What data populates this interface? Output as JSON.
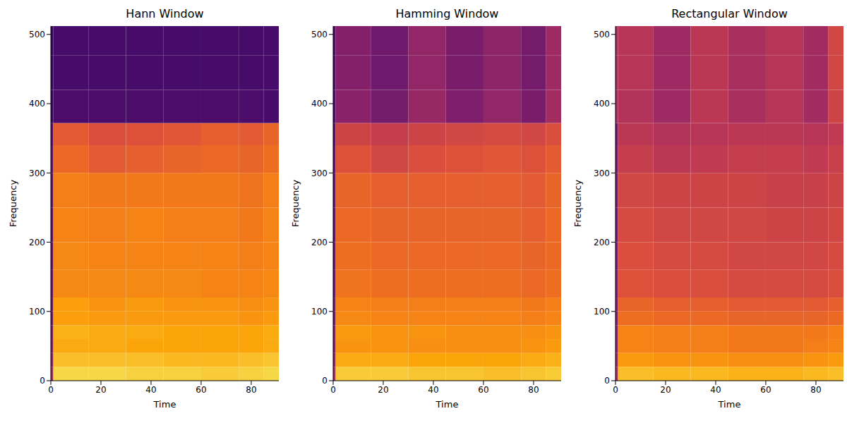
{
  "chart_data": [
    {
      "type": "heatmap",
      "title": "Hann Window",
      "x_label": "Time",
      "y_label": "Frequency",
      "xlim": [
        0,
        91
      ],
      "xticks": [
        0,
        20,
        40,
        60,
        80
      ],
      "ylim": [
        0,
        512
      ],
      "yticks": [
        0,
        100,
        200,
        300,
        400,
        500
      ],
      "clim": [
        -80,
        0
      ],
      "xbins": [
        0,
        1,
        15,
        30,
        45,
        60,
        75,
        85,
        91
      ],
      "ybins": [
        0,
        20,
        40,
        60,
        80,
        100,
        120,
        160,
        200,
        250,
        300,
        340,
        372,
        420,
        470,
        512
      ],
      "cells": [
        [
          -45,
          -8,
          -8,
          -9,
          -9,
          -10,
          -9,
          -8
        ],
        [
          -50,
          -12,
          -12,
          -12,
          -13,
          -13,
          -12,
          -11
        ],
        [
          -52,
          -15,
          -15,
          -16,
          -16,
          -16,
          -16,
          -15
        ],
        [
          -52,
          -14,
          -15,
          -15,
          -16,
          -16,
          -16,
          -15
        ],
        [
          -55,
          -17,
          -18,
          -18,
          -18,
          -18,
          -19,
          -18
        ],
        [
          -55,
          -17,
          -19,
          -18,
          -19,
          -19,
          -20,
          -19
        ],
        [
          -56,
          -21,
          -21,
          -21,
          -21,
          -22,
          -22,
          -21
        ],
        [
          -57,
          -21,
          -22,
          -22,
          -22,
          -22,
          -23,
          -22
        ],
        [
          -58,
          -22,
          -23,
          -22,
          -23,
          -23,
          -24,
          -22
        ],
        [
          -58,
          -23,
          -24,
          -24,
          -24,
          -24,
          -25,
          -23
        ],
        [
          -58,
          -27,
          -30,
          -29,
          -28,
          -27,
          -28,
          -26
        ],
        [
          -60,
          -30,
          -33,
          -32,
          -31,
          -29,
          -30,
          -28
        ],
        [
          -66,
          -62,
          -62,
          -62,
          -62,
          -62,
          -62,
          -63
        ],
        [
          -66,
          -63,
          -63,
          -63,
          -63,
          -63,
          -63,
          -63
        ],
        [
          -66,
          -63,
          -63,
          -63,
          -63,
          -63,
          -63,
          -63
        ]
      ]
    },
    {
      "type": "heatmap",
      "title": "Hamming Window",
      "x_label": "Time",
      "y_label": "Frequency",
      "xlim": [
        0,
        91
      ],
      "xticks": [
        0,
        20,
        40,
        60,
        80
      ],
      "ylim": [
        0,
        512
      ],
      "yticks": [
        0,
        100,
        200,
        300,
        400,
        500
      ],
      "clim": [
        -80,
        0
      ],
      "xbins": [
        0,
        1,
        15,
        30,
        45,
        60,
        75,
        85,
        91
      ],
      "ybins": [
        0,
        20,
        40,
        60,
        80,
        100,
        120,
        160,
        200,
        250,
        300,
        340,
        372,
        420,
        470,
        512
      ],
      "cells": [
        [
          -45,
          -10,
          -10,
          -11,
          -11,
          -12,
          -11,
          -10
        ],
        [
          -50,
          -15,
          -15,
          -16,
          -16,
          -16,
          -15,
          -14
        ],
        [
          -52,
          -19,
          -19,
          -20,
          -20,
          -20,
          -19,
          -18
        ],
        [
          -52,
          -18,
          -19,
          -19,
          -20,
          -20,
          -20,
          -19
        ],
        [
          -55,
          -21,
          -22,
          -22,
          -22,
          -22,
          -23,
          -22
        ],
        [
          -55,
          -22,
          -23,
          -23,
          -23,
          -23,
          -24,
          -23
        ],
        [
          -56,
          -25,
          -26,
          -26,
          -26,
          -26,
          -27,
          -26
        ],
        [
          -57,
          -26,
          -27,
          -27,
          -27,
          -27,
          -28,
          -27
        ],
        [
          -58,
          -27,
          -28,
          -28,
          -28,
          -28,
          -29,
          -27
        ],
        [
          -58,
          -28,
          -29,
          -29,
          -29,
          -29,
          -30,
          -28
        ],
        [
          -58,
          -32,
          -35,
          -33,
          -32,
          -31,
          -32,
          -30
        ],
        [
          -60,
          -36,
          -38,
          -36,
          -35,
          -34,
          -35,
          -33
        ],
        [
          -62,
          -50,
          -54,
          -47,
          -52,
          -48,
          -53,
          -45
        ],
        [
          -62,
          -51,
          -55,
          -48,
          -53,
          -49,
          -54,
          -46
        ],
        [
          -62,
          -51,
          -55,
          -48,
          -53,
          -49,
          -54,
          -46
        ]
      ]
    },
    {
      "type": "heatmap",
      "title": "Rectangular Window",
      "x_label": "Time",
      "y_label": "Frequency",
      "xlim": [
        0,
        91
      ],
      "xticks": [
        0,
        20,
        40,
        60,
        80
      ],
      "ylim": [
        0,
        512
      ],
      "yticks": [
        0,
        100,
        200,
        300,
        400,
        500
      ],
      "clim": [
        -80,
        0
      ],
      "xbins": [
        0,
        1,
        15,
        30,
        45,
        60,
        75,
        85,
        91
      ],
      "ybins": [
        0,
        20,
        40,
        60,
        80,
        100,
        120,
        160,
        200,
        250,
        300,
        340,
        372,
        420,
        470,
        512
      ],
      "cells": [
        [
          -45,
          -12,
          -13,
          -13,
          -14,
          -14,
          -13,
          -12
        ],
        [
          -48,
          -18,
          -19,
          -19,
          -20,
          -20,
          -19,
          -18
        ],
        [
          -50,
          -22,
          -23,
          -23,
          -24,
          -24,
          -23,
          -22
        ],
        [
          -50,
          -22,
          -23,
          -23,
          -24,
          -24,
          -24,
          -23
        ],
        [
          -52,
          -26,
          -27,
          -27,
          -28,
          -28,
          -28,
          -27
        ],
        [
          -52,
          -28,
          -29,
          -29,
          -30,
          -30,
          -30,
          -29
        ],
        [
          -53,
          -32,
          -33,
          -33,
          -34,
          -34,
          -34,
          -33
        ],
        [
          -53,
          -33,
          -34,
          -34,
          -35,
          -35,
          -35,
          -34
        ],
        [
          -54,
          -34,
          -35,
          -35,
          -35,
          -36,
          -36,
          -35
        ],
        [
          -54,
          -35,
          -36,
          -36,
          -36,
          -37,
          -37,
          -36
        ],
        [
          -54,
          -38,
          -40,
          -39,
          -38,
          -38,
          -39,
          -37
        ],
        [
          -55,
          -40,
          -42,
          -41,
          -40,
          -40,
          -41,
          -39
        ],
        [
          -45,
          -42,
          -46,
          -40,
          -44,
          -41,
          -45,
          -36
        ],
        [
          -45,
          -41,
          -46,
          -40,
          -44,
          -41,
          -45,
          -35
        ],
        [
          -45,
          -41,
          -46,
          -40,
          -44,
          -41,
          -45,
          -35
        ]
      ]
    }
  ]
}
